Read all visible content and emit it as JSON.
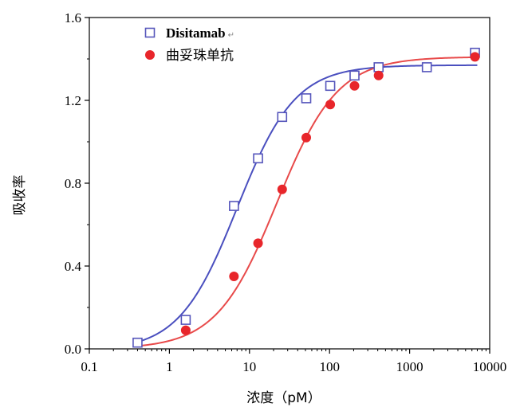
{
  "chart_data": {
    "type": "scatter",
    "xlabel": "浓度（pM）",
    "ylabel": "吸收率",
    "xscale": "log",
    "xlim": [
      0.1,
      10000
    ],
    "ylim": [
      0,
      1.6
    ],
    "xticks": [
      {
        "value": 0.1,
        "label": "0.1"
      },
      {
        "value": 1,
        "label": "1"
      },
      {
        "value": 10,
        "label": "10"
      },
      {
        "value": 100,
        "label": "100"
      },
      {
        "value": 1000,
        "label": "1000"
      },
      {
        "value": 10000,
        "label": "10000"
      }
    ],
    "yticks": [
      {
        "value": 0,
        "label": "0.0"
      },
      {
        "value": 0.4,
        "label": "0.4"
      },
      {
        "value": 0.8,
        "label": "0.8"
      },
      {
        "value": 1.2,
        "label": "1.2"
      },
      {
        "value": 1.6,
        "label": "1.6"
      }
    ],
    "grid": false,
    "legend_position": "top-left",
    "series": [
      {
        "name": "Disitamab",
        "legend_suffix": "↵",
        "marker": "open-square",
        "color": "#5555bb",
        "line_color": "#4a4fbf",
        "x": [
          0.4,
          1.6,
          6.4,
          12.8,
          25.6,
          51.2,
          102,
          205,
          410,
          1640,
          6550
        ],
        "y": [
          0.03,
          0.14,
          0.69,
          0.92,
          1.12,
          1.21,
          1.27,
          1.32,
          1.36,
          1.36,
          1.43
        ],
        "fit": {
          "bottom": -0.01,
          "top": 1.37,
          "ec50": 7,
          "hill": 1.2
        }
      },
      {
        "name": "曲妥珠单抗",
        "marker": "filled-circle",
        "color": "#e8262b",
        "line_color": "#e84a4a",
        "x": [
          1.6,
          6.4,
          12.8,
          25.6,
          51.2,
          102,
          205,
          410,
          6550
        ],
        "y": [
          0.09,
          0.35,
          0.51,
          0.77,
          1.02,
          1.18,
          1.27,
          1.32,
          1.41
        ],
        "fit": {
          "bottom": 0.0,
          "top": 1.41,
          "ec50": 22,
          "hill": 1.15
        }
      }
    ]
  }
}
